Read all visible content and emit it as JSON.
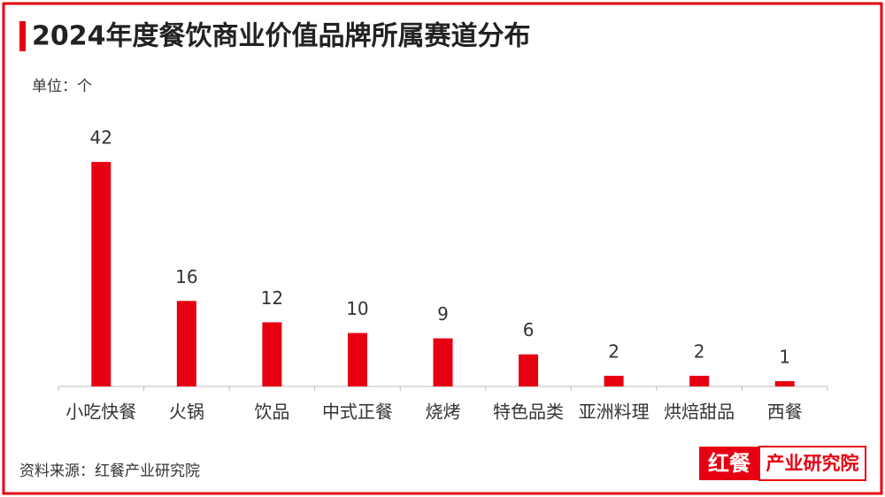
{
  "chart_data": {
    "type": "bar",
    "title": "2024年度餐饮商业价值品牌所属赛道分布",
    "unit_label": "单位：个",
    "categories": [
      "小吃快餐",
      "火锅",
      "饮品",
      "中式正餐",
      "烧烤",
      "特色品类",
      "亚洲料理",
      "烘焙甜品",
      "西餐"
    ],
    "values": [
      42,
      16,
      12,
      10,
      9,
      6,
      2,
      2,
      1
    ],
    "color": "#e60012",
    "ylim": [
      0,
      45
    ],
    "grid": false,
    "source": "资料来源：红餐产业研究院",
    "logo_mark": "红餐",
    "logo_text": "产业研究院"
  }
}
